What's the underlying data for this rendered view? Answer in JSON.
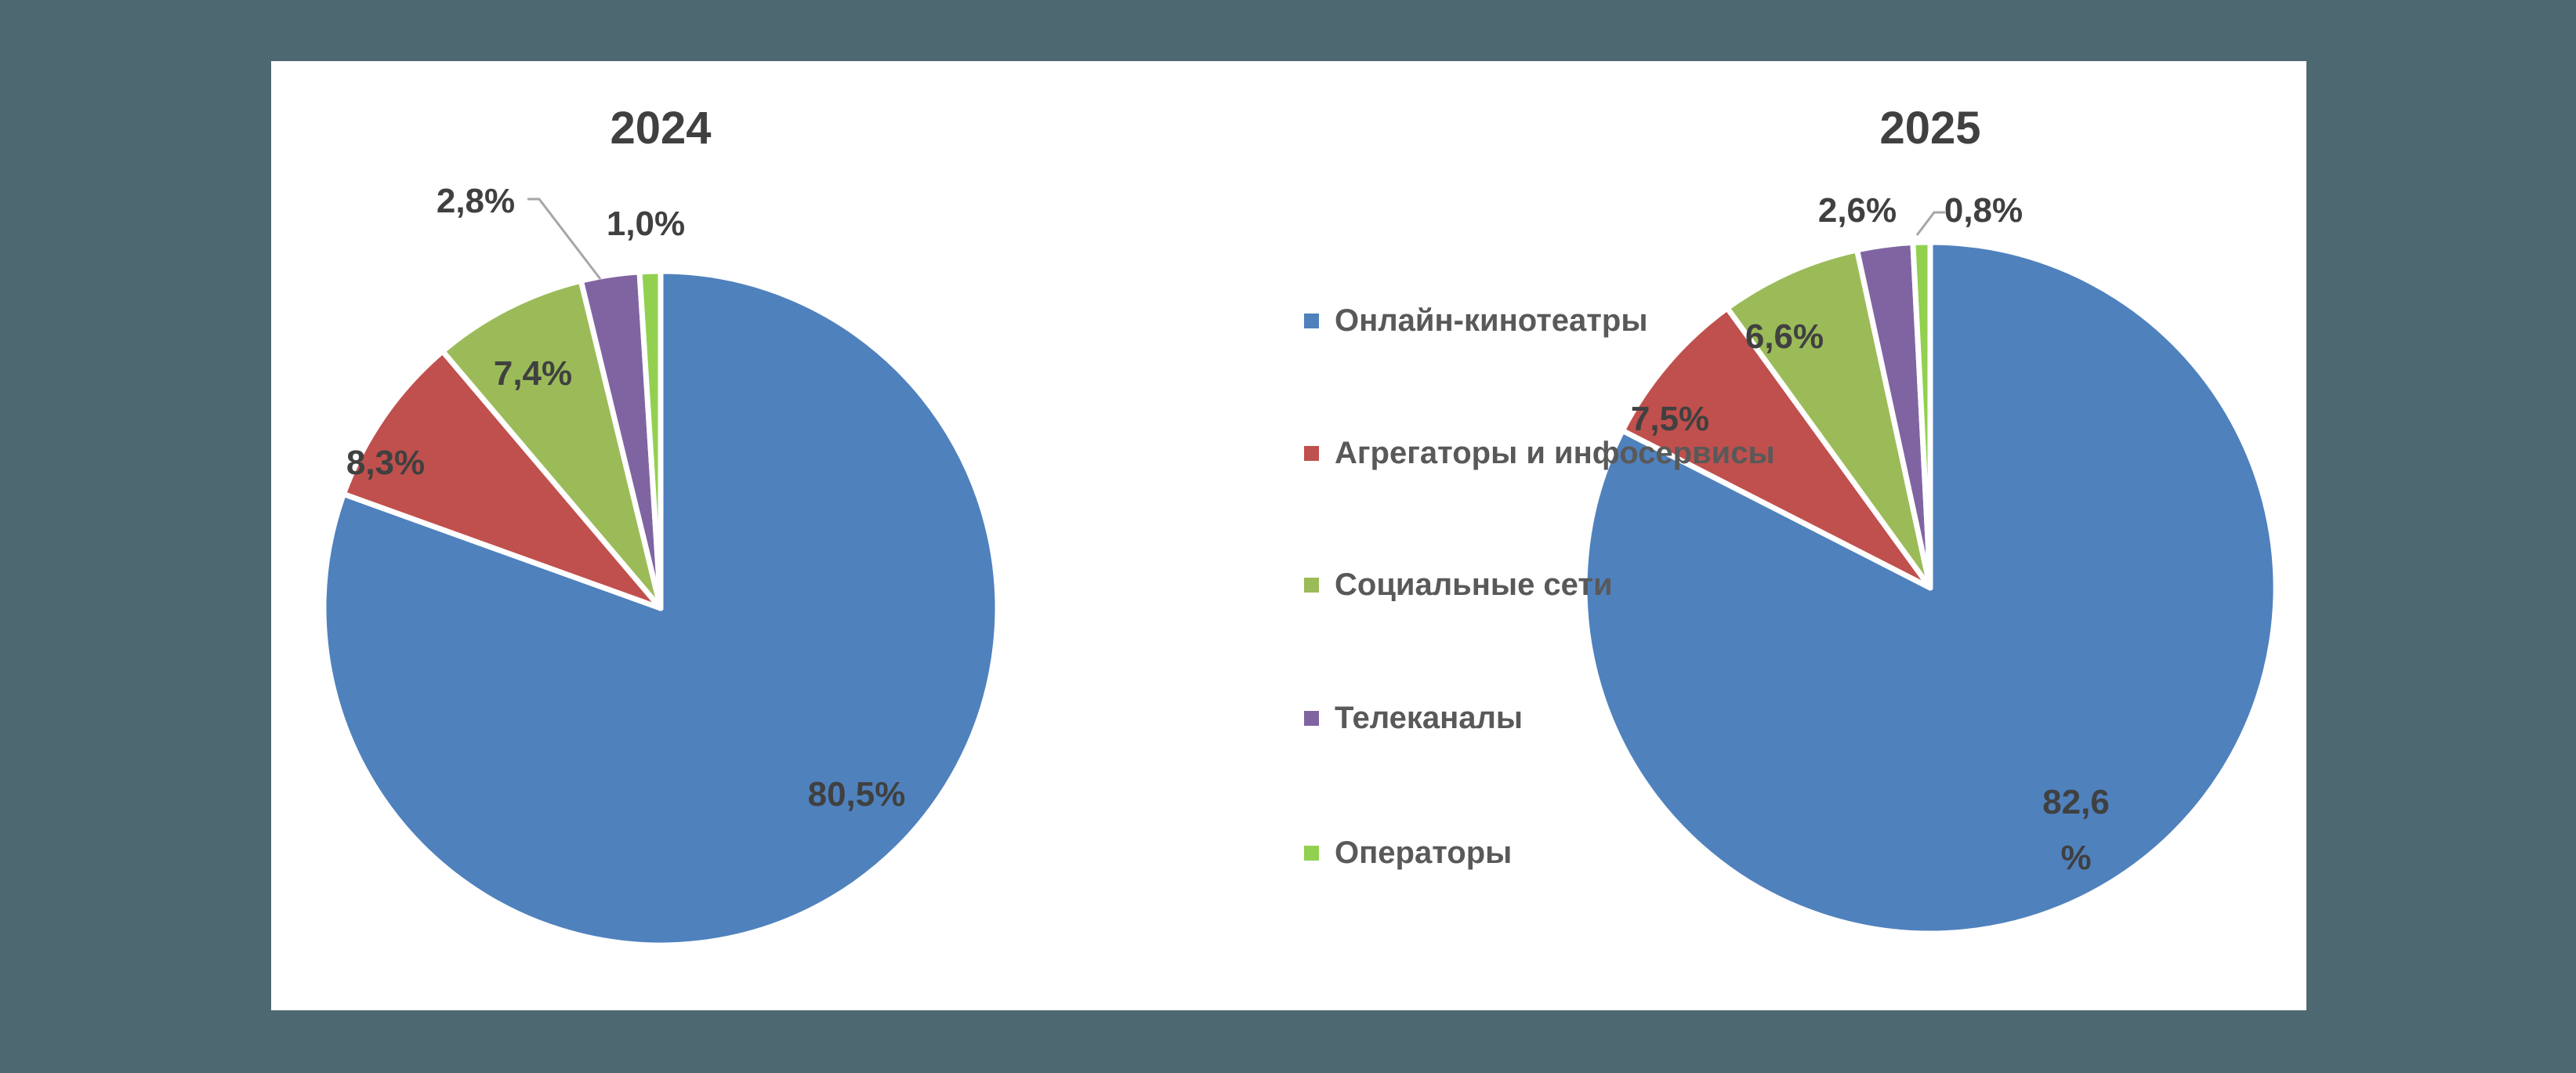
{
  "chart_data": [
    {
      "type": "pie",
      "title": "2024",
      "categories": [
        "Онлайн-кинотеатры",
        "Агрегаторы и инфосервисы",
        "Социальные сети",
        "Телеканалы",
        "Операторы"
      ],
      "values": [
        80.5,
        8.3,
        7.4,
        2.8,
        1.0
      ],
      "labels": [
        "80,5%",
        "8,3%",
        "7,4%",
        "2,8%",
        "1,0%"
      ],
      "legend_position": "center"
    },
    {
      "type": "pie",
      "title": "2025",
      "categories": [
        "Онлайн-кинотеатры",
        "Агрегаторы и инфосервисы",
        "Социальные сети",
        "Телеканалы",
        "Операторы"
      ],
      "values": [
        82.6,
        7.5,
        6.6,
        2.6,
        0.8
      ],
      "labels": [
        "82,6 %",
        "7,5%",
        "6,6%",
        "2,6%",
        "0,8%"
      ],
      "legend_position": "center"
    }
  ],
  "legend": {
    "items": [
      {
        "label": "Онлайн-кинотеатры",
        "color": "#4f81bd"
      },
      {
        "label": "Агрегаторы и инфосервисы",
        "color": "#c0504d"
      },
      {
        "label": "Социальные сети",
        "color": "#9bbb59"
      },
      {
        "label": "Телеканалы",
        "color": "#8064a2"
      },
      {
        "label": "Операторы",
        "color": "#92d050"
      }
    ]
  },
  "charts": {
    "left": {
      "title": "2024",
      "labels": {
        "online": "80,5%",
        "aggr": "8,3%",
        "social": "7,4%",
        "tv": "2,8%",
        "ops": "1,0%"
      }
    },
    "right": {
      "title": "2025",
      "labels": {
        "online_a": "82,6",
        "online_b": "%",
        "aggr": "7,5%",
        "social": "6,6%",
        "tv": "2,6%",
        "ops": "0,8%"
      }
    }
  }
}
